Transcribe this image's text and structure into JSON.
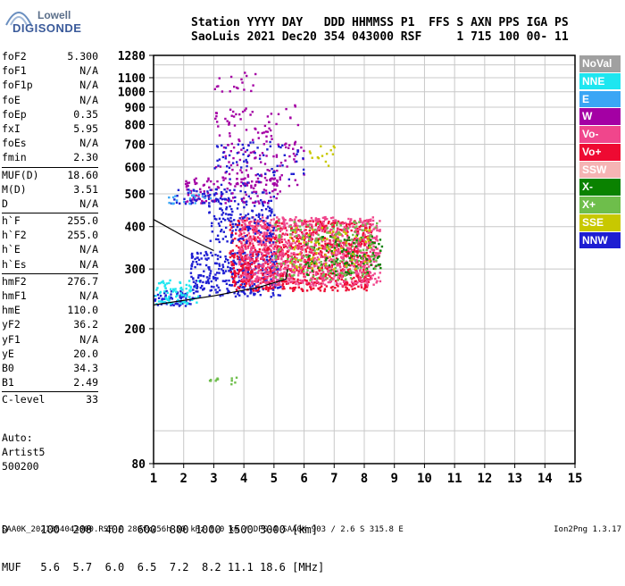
{
  "logo": {
    "brand_top": "Lowell",
    "brand_main": "DIGISONDE"
  },
  "header": {
    "line1": "Station YYYY DAY   DDD HHMMSS P1  FFS S AXN PPS IGA PS",
    "line2": "SaoLuis 2021 Dec20 354 043000 RSF     1 715 100 00- 11"
  },
  "params": [
    {
      "name": "foF2",
      "value": "5.300"
    },
    {
      "name": "foF1",
      "value": "N/A"
    },
    {
      "name": "foF1p",
      "value": "N/A"
    },
    {
      "name": "foE",
      "value": "N/A"
    },
    {
      "name": "foEp",
      "value": "0.35"
    },
    {
      "name": "fxI",
      "value": "5.95"
    },
    {
      "name": "foEs",
      "value": "N/A"
    },
    {
      "name": "fmin",
      "value": "2.30"
    },
    {
      "name": "MUF(D)",
      "value": "18.60",
      "sep": true
    },
    {
      "name": "M(D)",
      "value": "3.51"
    },
    {
      "name": "D",
      "value": "N/A"
    },
    {
      "name": "h`F",
      "value": "255.0",
      "sep": true
    },
    {
      "name": "h`F2",
      "value": "255.0"
    },
    {
      "name": "h`E",
      "value": "N/A"
    },
    {
      "name": "h`Es",
      "value": "N/A"
    },
    {
      "name": "hmF2",
      "value": "276.7",
      "sep": true
    },
    {
      "name": "hmF1",
      "value": "N/A"
    },
    {
      "name": "hmE",
      "value": "110.0"
    },
    {
      "name": "yF2",
      "value": "36.2"
    },
    {
      "name": "yF1",
      "value": "N/A"
    },
    {
      "name": "yE",
      "value": "20.0"
    },
    {
      "name": "B0",
      "value": "34.3"
    },
    {
      "name": "B1",
      "value": "2.49"
    },
    {
      "name": "C-level",
      "value": "33",
      "sep": true
    }
  ],
  "auto": {
    "line1": "Auto:",
    "line2": "Artist5",
    "line3": "500200"
  },
  "legend": [
    {
      "label": "NoVal",
      "color": "#a0a0a0"
    },
    {
      "label": "NNE",
      "color": "#1ee6f0"
    },
    {
      "label": "E",
      "color": "#3aa6f5"
    },
    {
      "label": "W",
      "color": "#a400a4"
    },
    {
      "label": "Vo-",
      "color": "#f0468c"
    },
    {
      "label": "Vo+",
      "color": "#ee0a32"
    },
    {
      "label": "SSW",
      "color": "#f5b4b4"
    },
    {
      "label": "X-",
      "color": "#0a8200"
    },
    {
      "label": "X+",
      "color": "#6ebe4b"
    },
    {
      "label": "SSE",
      "color": "#c8c800"
    },
    {
      "label": "NNW",
      "color": "#1e1ed2"
    }
  ],
  "muf_table": {
    "line1": "D     100  200  400  600  800 1000 1500 3000 [km]",
    "line2": "MUF   5.6  5.7  6.0  6.5  7.2  8.2 11.1 18.6 [MHz]"
  },
  "footer": {
    "left": "SAA0K_2021354043000.RSF / 280fx256h 50 kHz 5.0 km / DPS-4 SAA0K 903 / 2.6 S 315.8 E",
    "right": "Ion2Png 1.3.17"
  },
  "chart_data": {
    "type": "scatter",
    "title": "",
    "xlabel": "",
    "ylabel": "",
    "xlim": [
      1,
      15
    ],
    "ylim": [
      80,
      1280
    ],
    "y_scale": "log",
    "grid": true,
    "x_ticks": [
      1,
      2,
      3,
      4,
      5,
      6,
      7,
      8,
      9,
      10,
      11,
      12,
      13,
      14,
      15
    ],
    "y_ticks": [
      80,
      200,
      300,
      400,
      500,
      600,
      700,
      800,
      900,
      1000,
      1100,
      1280
    ],
    "y_tick_labels": [
      "80",
      "200",
      "300",
      "400",
      "500",
      "600",
      "700",
      "800",
      "900",
      "1000",
      "1100",
      "1280"
    ],
    "trace_lines": [
      {
        "name": "profile",
        "points": [
          [
            1.0,
            235
          ],
          [
            3.0,
            250
          ],
          [
            4.5,
            265
          ],
          [
            5.4,
            280
          ],
          [
            5.45,
            300
          ]
        ]
      },
      {
        "name": "oblique",
        "points": [
          [
            1.0,
            420
          ],
          [
            2.0,
            375
          ],
          [
            3.0,
            340
          ]
        ]
      }
    ],
    "echo_clusters": [
      {
        "x": [
          1.0,
          2.3
        ],
        "y": [
          235,
          260
        ],
        "color": "#1e1ed2",
        "density": 0.85
      },
      {
        "x": [
          1.0,
          2.5
        ],
        "y": [
          238,
          280
        ],
        "color": "#1ee6f0",
        "density": 0.55
      },
      {
        "x": [
          2.2,
          5.2
        ],
        "y": [
          250,
          340
        ],
        "color": "#1e1ed2",
        "density": 0.6
      },
      {
        "x": [
          3.5,
          8.2
        ],
        "y": [
          260,
          420
        ],
        "color": "#ee0a32",
        "density": 0.7
      },
      {
        "x": [
          3.8,
          8.5
        ],
        "y": [
          270,
          430
        ],
        "color": "#f0468c",
        "density": 0.7
      },
      {
        "x": [
          6.0,
          8.6
        ],
        "y": [
          290,
          380
        ],
        "color": "#0a8200",
        "density": 0.25
      },
      {
        "x": [
          5.0,
          8.4
        ],
        "y": [
          280,
          420
        ],
        "color": "#6ebe4b",
        "density": 0.2
      },
      {
        "x": [
          5.5,
          8.2
        ],
        "y": [
          300,
          400
        ],
        "color": "#c8c800",
        "density": 0.15
      },
      {
        "x": [
          2.8,
          5.0
        ],
        "y": [
          360,
          520
        ],
        "color": "#1e1ed2",
        "density": 0.35
      },
      {
        "x": [
          2.0,
          5.2
        ],
        "y": [
          470,
          560
        ],
        "color": "#a400a4",
        "density": 0.35
      },
      {
        "x": [
          1.5,
          3.5
        ],
        "y": [
          470,
          520
        ],
        "color": "#1e1ed2",
        "density": 0.35
      },
      {
        "x": [
          1.4,
          3.0
        ],
        "y": [
          470,
          510
        ],
        "color": "#3aa6f5",
        "density": 0.25
      },
      {
        "x": [
          3.0,
          6.0
        ],
        "y": [
          530,
          720
        ],
        "color": "#a400a4",
        "density": 0.18
      },
      {
        "x": [
          3.0,
          6.0
        ],
        "y": [
          530,
          720
        ],
        "color": "#1e1ed2",
        "density": 0.12
      },
      {
        "x": [
          3.0,
          5.0
        ],
        "y": [
          700,
          900
        ],
        "color": "#a400a4",
        "density": 0.16
      },
      {
        "x": [
          5.0,
          5.8
        ],
        "y": [
          800,
          920
        ],
        "color": "#a400a4",
        "density": 0.12
      },
      {
        "x": [
          3.0,
          4.5
        ],
        "y": [
          1000,
          1150
        ],
        "color": "#a400a4",
        "density": 0.14
      },
      {
        "x": [
          2.8,
          3.9
        ],
        "y": [
          138,
          145
        ],
        "color": "#6ebe4b",
        "density": 0.35
      },
      {
        "x": [
          6.0,
          7.0
        ],
        "y": [
          600,
          700
        ],
        "color": "#c8c800",
        "density": 0.15
      }
    ]
  }
}
